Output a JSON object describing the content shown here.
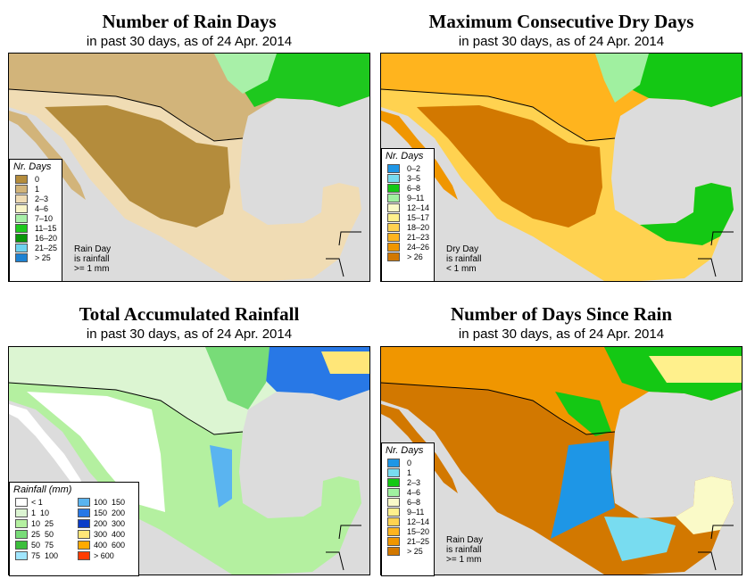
{
  "panels": [
    {
      "title": "Number of Rain Days",
      "subtitle": "in past 30 days, as of  24 Apr. 2014",
      "legend_title": "Nr. Days",
      "legend": [
        {
          "label": "0",
          "color": "#b48c3c"
        },
        {
          "label": "1",
          "color": "#d2b47a"
        },
        {
          "label": "2–3",
          "color": "#f0dcb4"
        },
        {
          "label": "4–6",
          "color": "#faf5c8"
        },
        {
          "label": "7–10",
          "color": "#a8f0a8"
        },
        {
          "label": "11–15",
          "color": "#1ec81e"
        },
        {
          "label": "16–20",
          "color": "#0a960a"
        },
        {
          "label": "21–25",
          "color": "#6ed2f0"
        },
        {
          "label": "> 25",
          "color": "#1e82d2"
        }
      ],
      "note": [
        "Rain Day",
        "is rainfall",
        ">= 1 mm"
      ]
    },
    {
      "title": "Maximum Consecutive Dry Days",
      "subtitle": "in past 30 days, as of  24 Apr. 2014",
      "legend_title": "Nr. Days",
      "legend": [
        {
          "label": "0–2",
          "color": "#1e96e6"
        },
        {
          "label": "3–5",
          "color": "#78dcf0"
        },
        {
          "label": "6–8",
          "color": "#14c814"
        },
        {
          "label": "9–11",
          "color": "#a0f0a0"
        },
        {
          "label": "12–14",
          "color": "#fafac8"
        },
        {
          "label": "15–17",
          "color": "#fff08c"
        },
        {
          "label": "18–20",
          "color": "#ffd250"
        },
        {
          "label": "21–23",
          "color": "#ffb41e"
        },
        {
          "label": "24–26",
          "color": "#f09600"
        },
        {
          "label": "> 26",
          "color": "#d27800"
        }
      ],
      "note": [
        "Dry Day",
        "is rainfall",
        "< 1 mm"
      ]
    },
    {
      "title": "Total Accumulated Rainfall",
      "subtitle": "in past 30 days, as of  24 Apr. 2014",
      "legend_title": "Rainfall (mm)",
      "legend": [
        {
          "label": "< 1",
          "color": "#ffffff"
        },
        {
          "label": "1  10",
          "color": "#dcf5d2"
        },
        {
          "label": "10  25",
          "color": "#b4f0a0"
        },
        {
          "label": "25  50",
          "color": "#78dc78"
        },
        {
          "label": "50  75",
          "color": "#3cbe3c"
        },
        {
          "label": "75  100",
          "color": "#a0e6ff"
        },
        {
          "label": "100  150",
          "color": "#5ab4f0"
        },
        {
          "label": "150  200",
          "color": "#2878e6"
        },
        {
          "label": "200  300",
          "color": "#0a3cc8"
        },
        {
          "label": "300  400",
          "color": "#ffe678"
        },
        {
          "label": "400  600",
          "color": "#ffaa00"
        },
        {
          "label": "> 600",
          "color": "#ff3c00"
        }
      ],
      "note": []
    },
    {
      "title": "Number of Days Since Rain",
      "subtitle": "in past 30 days, as of  24 Apr. 2014",
      "legend_title": "Nr. Days",
      "legend": [
        {
          "label": "0",
          "color": "#1e96e6"
        },
        {
          "label": "1",
          "color": "#78dcf0"
        },
        {
          "label": "2–3",
          "color": "#14c814"
        },
        {
          "label": "4–6",
          "color": "#a0f0a0"
        },
        {
          "label": "6–8",
          "color": "#fafac8"
        },
        {
          "label": "9–11",
          "color": "#fff08c"
        },
        {
          "label": "12–14",
          "color": "#ffd250"
        },
        {
          "label": "15–20",
          "color": "#ffb41e"
        },
        {
          "label": "21–25",
          "color": "#f09600"
        },
        {
          "label": "> 25",
          "color": "#d27800"
        }
      ],
      "note": [
        "Rain Day",
        "is rainfall",
        ">= 1 mm"
      ]
    }
  ]
}
